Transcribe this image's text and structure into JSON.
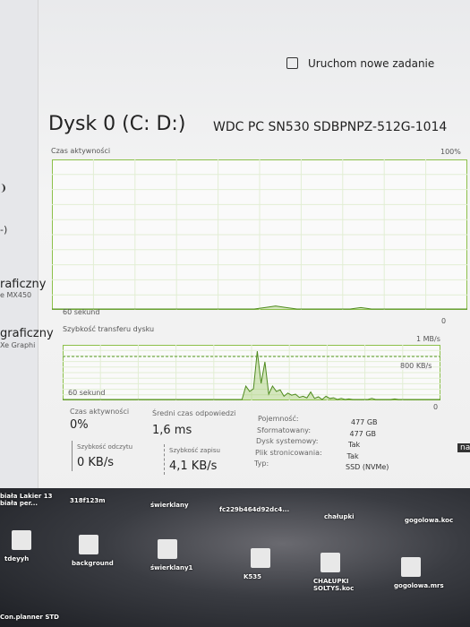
{
  "header": {
    "button": "Uruchom nowe zadanie"
  },
  "sidebar": [
    "raficzny",
    "e MX450",
    "graficzny",
    "Xe Graphi"
  ],
  "title": "Dysk 0 (C: D:)",
  "model": "WDC PC SN530 SDBPNPZ-512G-1014",
  "activity_graph": {
    "label": "Czas aktywności",
    "max_label": "100%",
    "time_label": "60 sekund",
    "min_label": "0",
    "ylim": [
      0,
      100
    ],
    "values": [
      0,
      0,
      0,
      0,
      0,
      0,
      0,
      0,
      0,
      0,
      0,
      0,
      0,
      0,
      0,
      0,
      0,
      0,
      0,
      0,
      1,
      2,
      1,
      0,
      0,
      0,
      0,
      0,
      0,
      1,
      0,
      0,
      0,
      0,
      0,
      0,
      0,
      0,
      0,
      0
    ]
  },
  "transfer_graph": {
    "label": "Szybkość transferu dysku",
    "max_label": "1 MB/s",
    "mid_label": "800 KB/s",
    "time_label": "60 sekund",
    "min_label": "0",
    "ylim": [
      0,
      1000
    ],
    "mid_value": 800,
    "values": [
      0,
      0,
      0,
      0,
      0,
      0,
      0,
      0,
      0,
      0,
      0,
      0,
      0,
      0,
      0,
      0,
      0,
      0,
      0,
      0,
      0,
      0,
      0,
      0,
      0,
      0,
      0,
      0,
      0,
      0,
      0,
      0,
      0,
      0,
      0,
      0,
      0,
      0,
      0,
      0,
      0,
      0,
      0,
      0,
      0,
      0,
      0,
      0,
      250,
      150,
      200,
      900,
      300,
      700,
      100,
      250,
      150,
      180,
      60,
      120,
      80,
      100,
      40,
      60,
      30,
      140,
      20,
      50,
      0,
      60,
      20,
      30,
      0,
      20,
      0,
      10,
      0,
      0,
      0,
      0,
      0,
      20,
      0,
      0,
      0,
      0,
      0,
      10,
      0,
      0,
      0,
      0,
      0,
      0,
      0,
      0,
      0,
      0,
      0,
      0
    ]
  },
  "stats": [
    {
      "label": "Czas aktywności",
      "value": "0%"
    },
    {
      "label": "Średni czas odpowiedzi",
      "value": "1,6 ms"
    },
    {
      "label": "Szybkość odczytu",
      "value": "0 KB/s"
    },
    {
      "label": "Szybkość zapisu",
      "value": "4,1 KB/s"
    }
  ],
  "properties": [
    {
      "label": "Pojemność:",
      "value": "477 GB"
    },
    {
      "label": "Sformatowany:",
      "value": "477 GB"
    },
    {
      "label": "Dysk systemowy:",
      "value": "Tak"
    },
    {
      "label": "Plik stronicowania:",
      "value": "Tak"
    },
    {
      "label": "Typ:",
      "value": "SSD (NVMe)"
    }
  ],
  "desktop_icons": [
    "biała Lakier 13 biała per...",
    "318f123m",
    "świerklany",
    "fc229b464d92dc4...",
    "chałupki",
    "gogolowa.koc",
    "tdeyyh",
    "background",
    "świerklany1",
    "K535",
    "CHAŁUPKI SOLTYS.koc",
    "gogolowa.mrs",
    "Con.planner STD"
  ],
  "edge_text": "nap"
}
